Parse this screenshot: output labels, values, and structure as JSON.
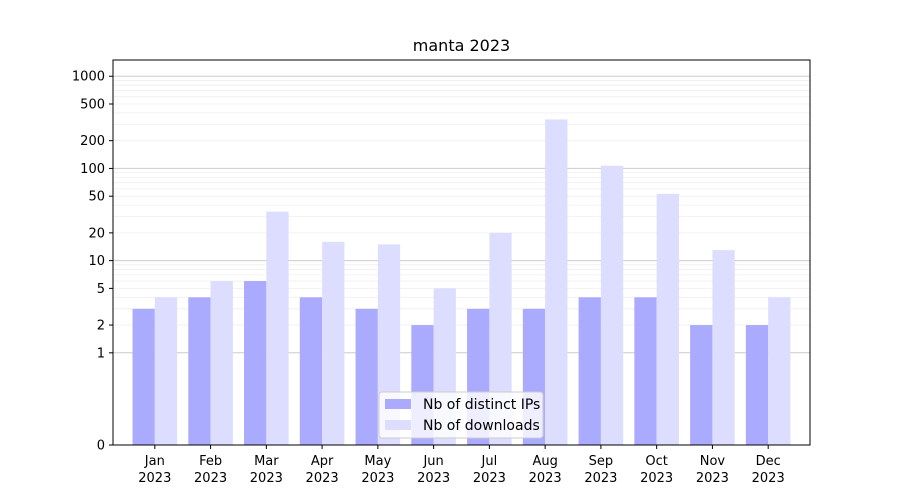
{
  "chart_data": {
    "type": "bar",
    "title": "manta 2023",
    "xlabel": "",
    "ylabel": "",
    "yscale": "symlog",
    "ylim": [
      0,
      1500
    ],
    "yticks": [
      0,
      1,
      2,
      5,
      10,
      20,
      50,
      100,
      200,
      500,
      1000
    ],
    "grid": true,
    "legend_position": "bottom-center",
    "categories": [
      [
        "Jan",
        "2023"
      ],
      [
        "Feb",
        "2023"
      ],
      [
        "Mar",
        "2023"
      ],
      [
        "Apr",
        "2023"
      ],
      [
        "May",
        "2023"
      ],
      [
        "Jun",
        "2023"
      ],
      [
        "Jul",
        "2023"
      ],
      [
        "Aug",
        "2023"
      ],
      [
        "Sep",
        "2023"
      ],
      [
        "Oct",
        "2023"
      ],
      [
        "Nov",
        "2023"
      ],
      [
        "Dec",
        "2023"
      ]
    ],
    "series": [
      {
        "name": "Nb of distinct IPs",
        "color": "#aaaaff",
        "values": [
          3,
          4,
          6,
          4,
          3,
          2,
          3,
          3,
          4,
          4,
          2,
          2
        ]
      },
      {
        "name": "Nb of downloads",
        "color": "#ddddff",
        "values": [
          4,
          6,
          34,
          16,
          15,
          5,
          20,
          340,
          107,
          53,
          13,
          4
        ]
      }
    ]
  }
}
